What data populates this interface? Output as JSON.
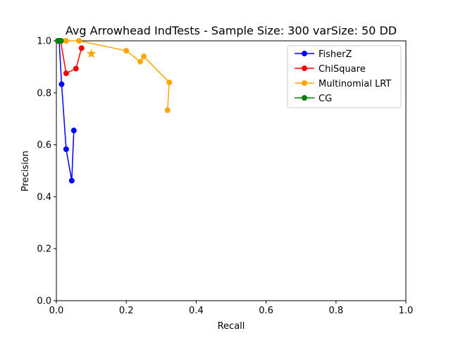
{
  "chart_data": {
    "type": "line",
    "title": "Avg Arrowhead IndTests - Sample Size: 300 varSize: 50 DD",
    "xlabel": "Recall",
    "ylabel": "Precision",
    "xlim": [
      0,
      1
    ],
    "ylim": [
      0,
      1
    ],
    "xticks": [
      "0.0",
      "0.2",
      "0.4",
      "0.6",
      "0.8",
      "1.0"
    ],
    "yticks": [
      "0.0",
      "0.2",
      "0.4",
      "0.6",
      "0.8",
      "1.0"
    ],
    "grid": false,
    "legend_position": "top-right",
    "series": [
      {
        "name": "FisherZ",
        "color": "#0000ff",
        "points": [
          [
            0.005,
            1.0
          ],
          [
            0.008,
            1.0
          ],
          [
            0.015,
            0.833
          ],
          [
            0.028,
            0.583
          ],
          [
            0.044,
            0.462
          ],
          [
            0.05,
            0.655
          ]
        ]
      },
      {
        "name": "ChiSquare",
        "color": "#ff0000",
        "points": [
          [
            0.005,
            1.0
          ],
          [
            0.012,
            1.0
          ],
          [
            0.028,
            0.875
          ],
          [
            0.056,
            0.893
          ],
          [
            0.072,
            0.972
          ]
        ]
      },
      {
        "name": "Multinomial LRT",
        "color": "#ffa500",
        "points": [
          [
            0.015,
            1.0
          ],
          [
            0.028,
            1.0
          ],
          [
            0.065,
            1.0
          ],
          [
            0.2,
            0.962
          ],
          [
            0.24,
            0.92
          ],
          [
            0.25,
            0.94
          ],
          [
            0.323,
            0.84
          ],
          [
            0.318,
            0.733
          ]
        ]
      },
      {
        "name": "CG",
        "color": "#008000",
        "points": [
          [
            0.004,
            1.0
          ],
          [
            0.008,
            1.0
          ],
          [
            0.013,
            1.0
          ]
        ]
      }
    ],
    "markers": [
      {
        "shape": "star",
        "color": "#ffa500",
        "x": 0.1,
        "y": 0.95
      }
    ]
  }
}
